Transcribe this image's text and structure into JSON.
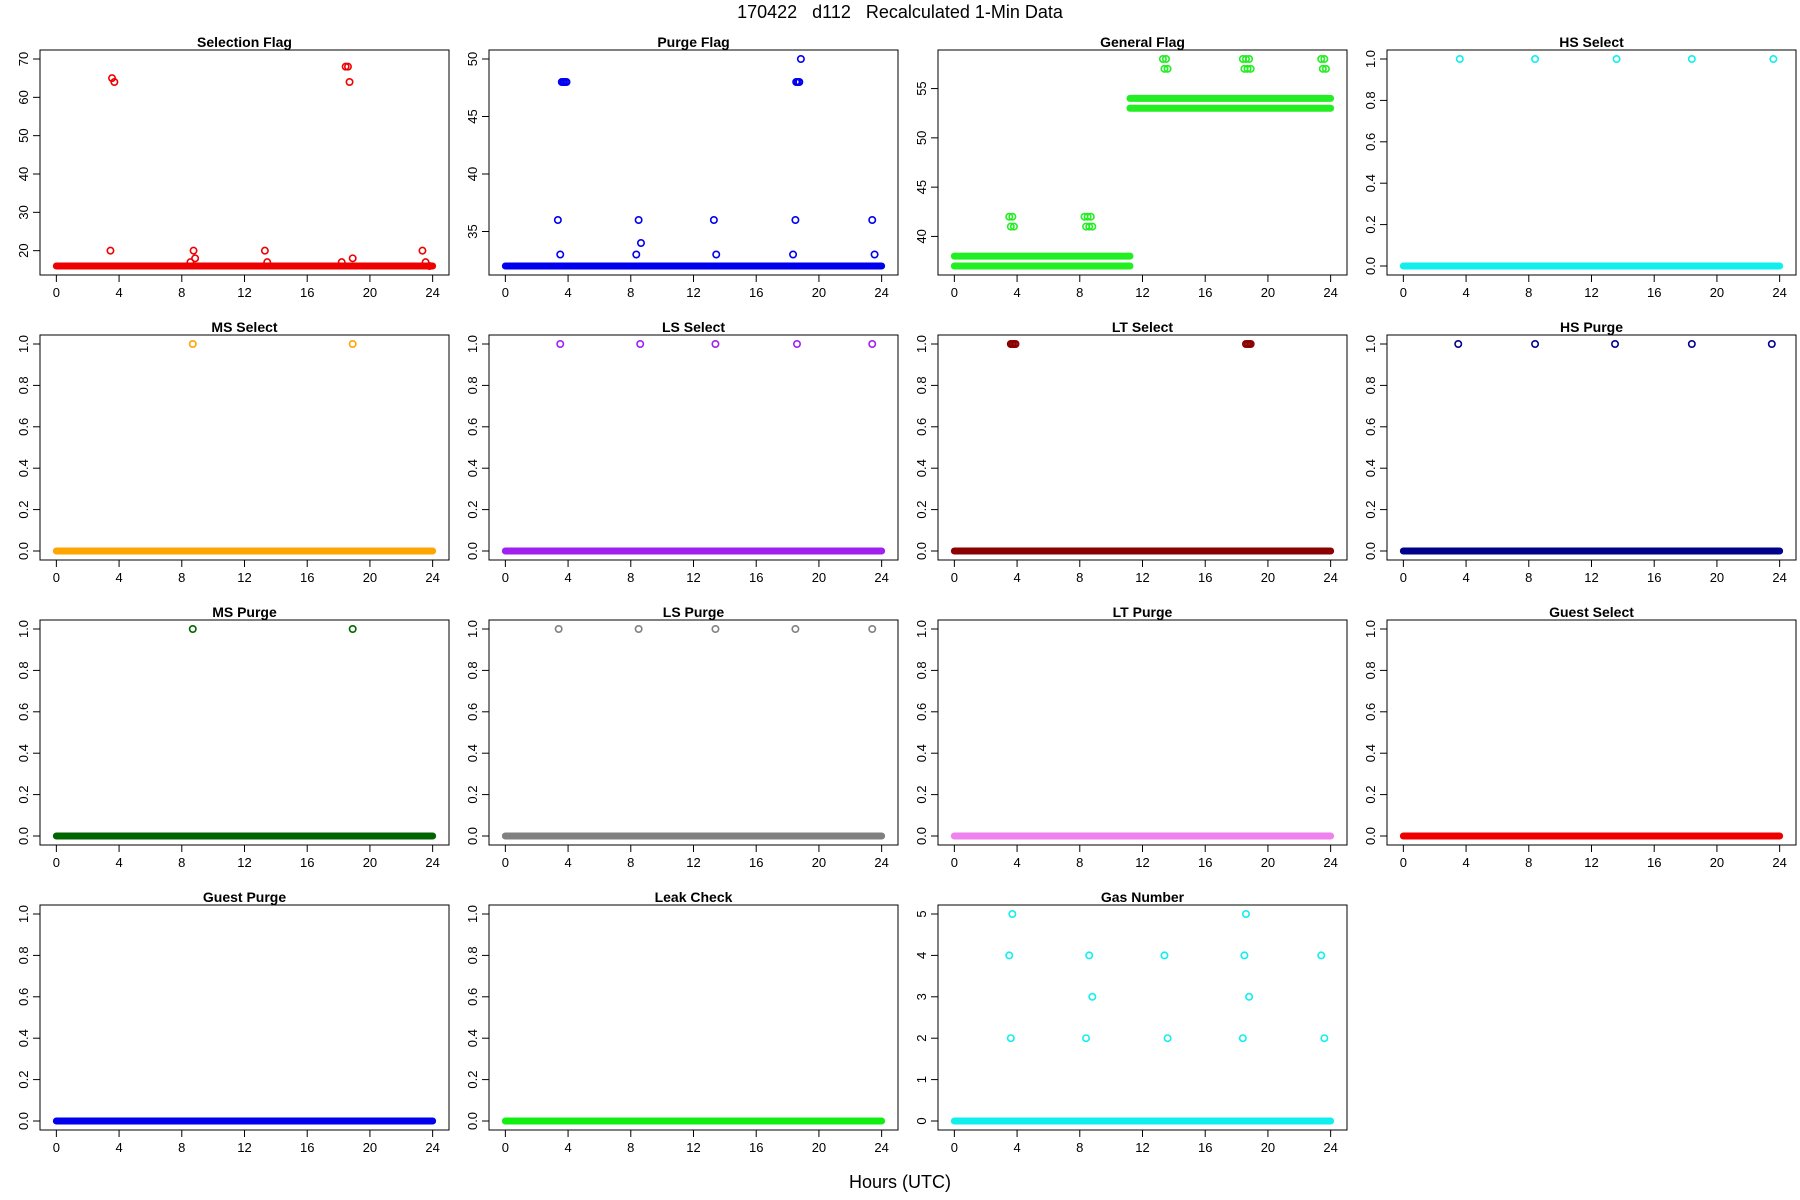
{
  "figure": {
    "title": "170422   d112   Recalculated 1-Min Data",
    "xlabel": "Hours (UTC)"
  },
  "chart_data": [
    {
      "type": "scatter",
      "title": "Selection Flag",
      "color": "#ee0000",
      "xlim": [
        0,
        24
      ],
      "ylim": [
        16,
        70
      ],
      "xticks": [
        "0",
        "4",
        "8",
        "12",
        "16",
        "20",
        "24"
      ],
      "yticks": [
        20,
        30,
        40,
        50,
        60,
        70
      ],
      "baseline": {
        "y": 16,
        "segments": [
          [
            0,
            24
          ]
        ]
      },
      "points": [
        [
          3.45,
          20
        ],
        [
          3.55,
          65
        ],
        [
          3.7,
          64
        ],
        [
          8.55,
          17
        ],
        [
          8.75,
          20
        ],
        [
          8.85,
          18
        ],
        [
          13.3,
          20
        ],
        [
          13.45,
          17
        ],
        [
          18.2,
          17
        ],
        [
          18.45,
          68
        ],
        [
          18.6,
          68
        ],
        [
          18.7,
          64
        ],
        [
          18.9,
          18
        ],
        [
          23.35,
          20
        ],
        [
          23.55,
          17
        ],
        [
          23.8,
          16
        ]
      ]
    },
    {
      "type": "scatter",
      "title": "Purge Flag",
      "color": "#0000ee",
      "xlim": [
        0,
        24
      ],
      "ylim": [
        32,
        50
      ],
      "xticks": [
        "0",
        "4",
        "8",
        "12",
        "16",
        "20",
        "24"
      ],
      "yticks": [
        35,
        40,
        45,
        50
      ],
      "baseline": {
        "y": 32,
        "segments": [
          [
            0,
            24
          ]
        ]
      },
      "points": [
        [
          3.35,
          36
        ],
        [
          3.5,
          33
        ],
        [
          3.6,
          48
        ],
        [
          3.7,
          48
        ],
        [
          3.8,
          48
        ],
        [
          3.9,
          48
        ],
        [
          8.35,
          33
        ],
        [
          8.5,
          36
        ],
        [
          8.65,
          34
        ],
        [
          13.3,
          36
        ],
        [
          13.45,
          33
        ],
        [
          18.35,
          33
        ],
        [
          18.5,
          36
        ],
        [
          18.55,
          48
        ],
        [
          18.65,
          48
        ],
        [
          18.75,
          48
        ],
        [
          18.85,
          50
        ],
        [
          23.4,
          36
        ],
        [
          23.55,
          33
        ]
      ]
    },
    {
      "type": "scatter",
      "title": "General Flag",
      "color": "#22ee22",
      "xlim": [
        0,
        24
      ],
      "ylim": [
        37,
        58
      ],
      "xticks": [
        "0",
        "4",
        "8",
        "12",
        "16",
        "20",
        "24"
      ],
      "yticks": [
        40,
        45,
        50,
        55
      ],
      "baseline": {
        "y": 37,
        "segments": [
          [
            0,
            11.2
          ]
        ],
        "y2": 38
      },
      "upper": {
        "y": 53,
        "y2": 54,
        "segments": [
          [
            11.2,
            24
          ]
        ]
      },
      "points": [
        [
          3.5,
          42
        ],
        [
          3.6,
          41
        ],
        [
          3.7,
          42
        ],
        [
          3.8,
          41
        ],
        [
          8.3,
          42
        ],
        [
          8.4,
          41
        ],
        [
          8.5,
          42
        ],
        [
          8.6,
          41
        ],
        [
          8.7,
          42
        ],
        [
          8.8,
          41
        ],
        [
          13.3,
          58
        ],
        [
          13.4,
          57
        ],
        [
          13.5,
          58
        ],
        [
          13.6,
          57
        ],
        [
          18.4,
          58
        ],
        [
          18.5,
          57
        ],
        [
          18.6,
          58
        ],
        [
          18.7,
          57
        ],
        [
          18.8,
          58
        ],
        [
          18.9,
          57
        ],
        [
          23.4,
          58
        ],
        [
          23.5,
          57
        ],
        [
          23.6,
          58
        ],
        [
          23.7,
          57
        ]
      ]
    },
    {
      "type": "scatter",
      "title": "HS Select",
      "color": "#11eeee",
      "xlim": [
        0,
        24
      ],
      "ylim": [
        0,
        1
      ],
      "xticks": [
        "0",
        "4",
        "8",
        "12",
        "16",
        "20",
        "24"
      ],
      "yticks": [
        0.0,
        0.2,
        0.4,
        0.6,
        0.8,
        1.0
      ],
      "baseline": {
        "y": 0,
        "segments": [
          [
            0,
            24
          ]
        ]
      },
      "points": [
        [
          3.6,
          1
        ],
        [
          8.4,
          1
        ],
        [
          13.6,
          1
        ],
        [
          18.4,
          1
        ],
        [
          23.6,
          1
        ]
      ]
    },
    {
      "type": "scatter",
      "title": "MS Select",
      "color": "#ffa500",
      "xlim": [
        0,
        24
      ],
      "ylim": [
        0,
        1
      ],
      "xticks": [
        "0",
        "4",
        "8",
        "12",
        "16",
        "20",
        "24"
      ],
      "yticks": [
        0.0,
        0.2,
        0.4,
        0.6,
        0.8,
        1.0
      ],
      "baseline": {
        "y": 0,
        "segments": [
          [
            0,
            24
          ]
        ]
      },
      "points": [
        [
          8.7,
          1
        ],
        [
          18.9,
          1
        ]
      ]
    },
    {
      "type": "scatter",
      "title": "LS Select",
      "color": "#a020f0",
      "xlim": [
        0,
        24
      ],
      "ylim": [
        0,
        1
      ],
      "xticks": [
        "0",
        "4",
        "8",
        "12",
        "16",
        "20",
        "24"
      ],
      "yticks": [
        0.0,
        0.2,
        0.4,
        0.6,
        0.8,
        1.0
      ],
      "baseline": {
        "y": 0,
        "segments": [
          [
            0,
            24
          ]
        ]
      },
      "points": [
        [
          3.5,
          1
        ],
        [
          8.6,
          1
        ],
        [
          13.4,
          1
        ],
        [
          18.6,
          1
        ],
        [
          23.4,
          1
        ]
      ]
    },
    {
      "type": "scatter",
      "title": "LT Select",
      "color": "#8b0000",
      "xlim": [
        0,
        24
      ],
      "ylim": [
        0,
        1
      ],
      "xticks": [
        "0",
        "4",
        "8",
        "12",
        "16",
        "20",
        "24"
      ],
      "yticks": [
        0.0,
        0.2,
        0.4,
        0.6,
        0.8,
        1.0
      ],
      "baseline": {
        "y": 0,
        "segments": [
          [
            0,
            24
          ]
        ]
      },
      "points": [
        [
          3.6,
          1
        ],
        [
          3.7,
          1
        ],
        [
          3.8,
          1
        ],
        [
          3.9,
          1
        ],
        [
          18.6,
          1
        ],
        [
          18.7,
          1
        ],
        [
          18.8,
          1
        ],
        [
          18.9,
          1
        ]
      ]
    },
    {
      "type": "scatter",
      "title": "HS Purge",
      "color": "#00008b",
      "xlim": [
        0,
        24
      ],
      "ylim": [
        0,
        1
      ],
      "xticks": [
        "0",
        "4",
        "8",
        "12",
        "16",
        "20",
        "24"
      ],
      "yticks": [
        0.0,
        0.2,
        0.4,
        0.6,
        0.8,
        1.0
      ],
      "baseline": {
        "y": 0,
        "segments": [
          [
            0,
            24
          ]
        ]
      },
      "points": [
        [
          3.5,
          1
        ],
        [
          8.4,
          1
        ],
        [
          13.5,
          1
        ],
        [
          18.4,
          1
        ],
        [
          23.5,
          1
        ]
      ]
    },
    {
      "type": "scatter",
      "title": "MS Purge",
      "color": "#006400",
      "xlim": [
        0,
        24
      ],
      "ylim": [
        0,
        1
      ],
      "xticks": [
        "0",
        "4",
        "8",
        "12",
        "16",
        "20",
        "24"
      ],
      "yticks": [
        0.0,
        0.2,
        0.4,
        0.6,
        0.8,
        1.0
      ],
      "baseline": {
        "y": 0,
        "segments": [
          [
            0,
            24
          ]
        ]
      },
      "points": [
        [
          8.7,
          1
        ],
        [
          18.9,
          1
        ]
      ]
    },
    {
      "type": "scatter",
      "title": "LS Purge",
      "color": "#808080",
      "xlim": [
        0,
        24
      ],
      "ylim": [
        0,
        1
      ],
      "xticks": [
        "0",
        "4",
        "8",
        "12",
        "16",
        "20",
        "24"
      ],
      "yticks": [
        0.0,
        0.2,
        0.4,
        0.6,
        0.8,
        1.0
      ],
      "baseline": {
        "y": 0,
        "segments": [
          [
            0,
            24
          ]
        ]
      },
      "points": [
        [
          3.4,
          1
        ],
        [
          8.5,
          1
        ],
        [
          13.4,
          1
        ],
        [
          18.5,
          1
        ],
        [
          23.4,
          1
        ]
      ]
    },
    {
      "type": "scatter",
      "title": "LT Purge",
      "color": "#ee82ee",
      "xlim": [
        0,
        24
      ],
      "ylim": [
        0,
        1
      ],
      "xticks": [
        "0",
        "4",
        "8",
        "12",
        "16",
        "20",
        "24"
      ],
      "yticks": [
        0.0,
        0.2,
        0.4,
        0.6,
        0.8,
        1.0
      ],
      "baseline": {
        "y": 0,
        "segments": [
          [
            0,
            24
          ]
        ]
      },
      "points": []
    },
    {
      "type": "scatter",
      "title": "Guest Select",
      "color": "#ee0000",
      "xlim": [
        0,
        24
      ],
      "ylim": [
        0,
        1
      ],
      "xticks": [
        "0",
        "4",
        "8",
        "12",
        "16",
        "20",
        "24"
      ],
      "yticks": [
        0.0,
        0.2,
        0.4,
        0.6,
        0.8,
        1.0
      ],
      "baseline": {
        "y": 0,
        "segments": [
          [
            0,
            24
          ]
        ]
      },
      "points": []
    },
    {
      "type": "scatter",
      "title": "Guest Purge",
      "color": "#0000ee",
      "xlim": [
        0,
        24
      ],
      "ylim": [
        0,
        1
      ],
      "xticks": [
        "0",
        "4",
        "8",
        "12",
        "16",
        "20",
        "24"
      ],
      "yticks": [
        0.0,
        0.2,
        0.4,
        0.6,
        0.8,
        1.0
      ],
      "baseline": {
        "y": 0,
        "segments": [
          [
            0,
            24
          ]
        ]
      },
      "points": []
    },
    {
      "type": "scatter",
      "title": "Leak Check",
      "color": "#11ee11",
      "xlim": [
        0,
        24
      ],
      "ylim": [
        0,
        1
      ],
      "xticks": [
        "0",
        "4",
        "8",
        "12",
        "16",
        "20",
        "24"
      ],
      "yticks": [
        0.0,
        0.2,
        0.4,
        0.6,
        0.8,
        1.0
      ],
      "baseline": {
        "y": 0,
        "segments": [
          [
            0,
            24
          ]
        ]
      },
      "points": []
    },
    {
      "type": "scatter",
      "title": "Gas Number",
      "color": "#11eeee",
      "xlim": [
        0,
        24
      ],
      "ylim": [
        0,
        5
      ],
      "xticks": [
        "0",
        "4",
        "8",
        "12",
        "16",
        "20",
        "24"
      ],
      "yticks": [
        0,
        1,
        2,
        3,
        4,
        5
      ],
      "baseline": {
        "y": 0,
        "segments": [
          [
            0,
            24
          ]
        ]
      },
      "points": [
        [
          3.5,
          4
        ],
        [
          3.6,
          2
        ],
        [
          3.7,
          5
        ],
        [
          8.4,
          2
        ],
        [
          8.6,
          4
        ],
        [
          8.8,
          3
        ],
        [
          13.4,
          4
        ],
        [
          13.6,
          2
        ],
        [
          18.4,
          2
        ],
        [
          18.5,
          4
        ],
        [
          18.6,
          5
        ],
        [
          18.8,
          3
        ],
        [
          23.4,
          4
        ],
        [
          23.6,
          2
        ]
      ]
    }
  ]
}
